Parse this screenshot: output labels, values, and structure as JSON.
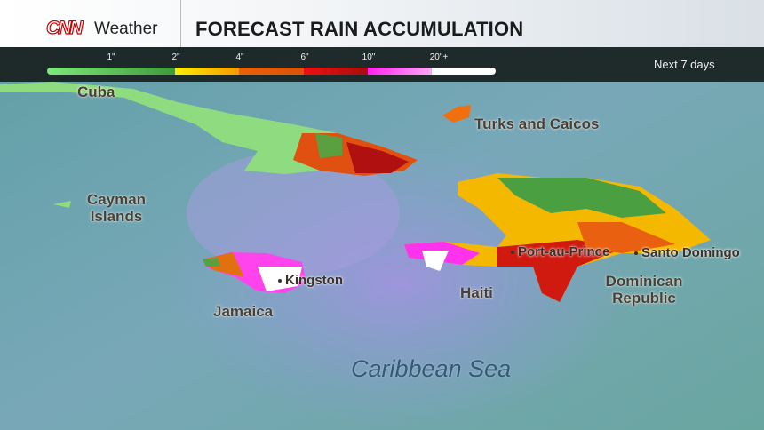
{
  "header": {
    "brand": "CNN",
    "section": "Weather",
    "title": "FORECAST RAIN ACCUMULATION"
  },
  "legend": {
    "ticks": [
      "1\"",
      "2\"",
      "4\"",
      "6\"",
      "10\"",
      "20\"+"
    ],
    "colors": [
      "#7ee87a",
      "#3e9a3a",
      "#ffee00",
      "#f59a00",
      "#e8620a",
      "#d9530a",
      "#ee1111",
      "#a80c0c",
      "#ff22ee",
      "#ffaaf5",
      "#ffffff"
    ],
    "period": "Next 7 days"
  },
  "map": {
    "labels": {
      "cuba": "Cuba",
      "turks": "Turks and Caicos",
      "cayman": "Cayman Islands",
      "jamaica": "Jamaica",
      "haiti": "Haiti",
      "dr": "Dominican Republic",
      "sea": "Caribbean Sea"
    },
    "cities": {
      "kingston": "Kingston",
      "pap": "Port-au-Prince",
      "sd": "Santo Domingo"
    },
    "colors": {
      "sea": "#6aa0a8",
      "rain_band": "#9a8fd8"
    }
  }
}
